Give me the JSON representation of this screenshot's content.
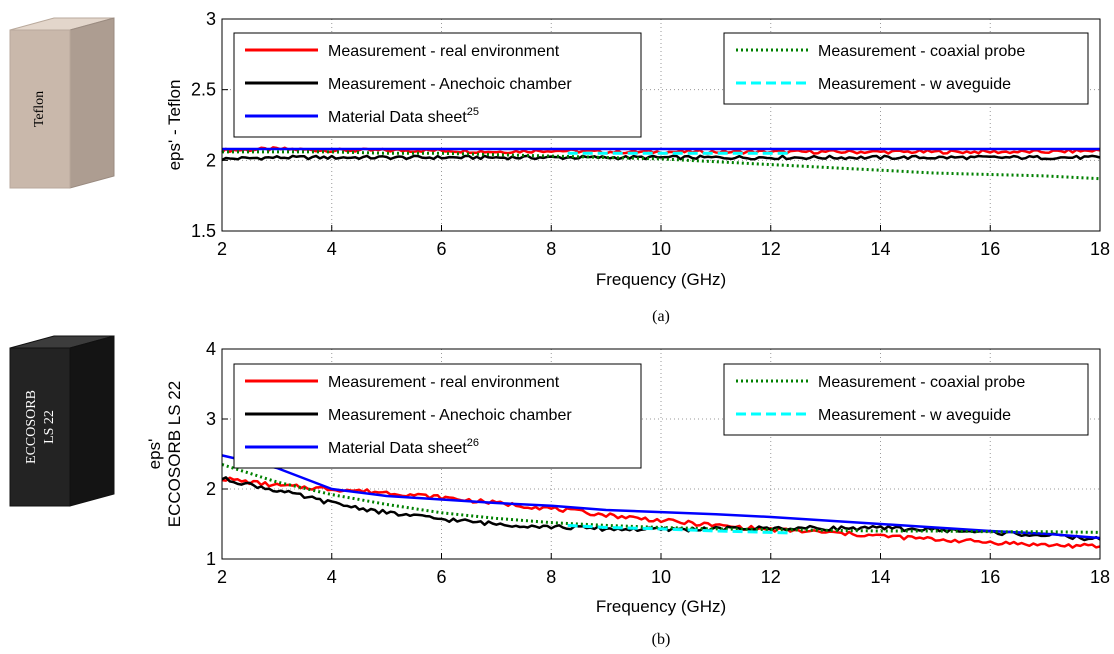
{
  "chart_data": [
    {
      "type": "line",
      "caption": "(a)",
      "material": "Teflon",
      "block_color": "#c9b8ab",
      "xlabel": "Frequency (GHz)",
      "ylabel": "eps' - Teflon",
      "xlim": [
        2,
        18
      ],
      "ylim": [
        1.5,
        3
      ],
      "xticks": [
        "2",
        "4",
        "6",
        "8",
        "10",
        "12",
        "14",
        "16",
        "18"
      ],
      "yticks": [
        "1.5",
        "2",
        "2.5",
        "3"
      ],
      "grid": true,
      "legend_placement": "top",
      "series": [
        {
          "name": "Measurement - real environment",
          "color": "#ff0000",
          "style": "solid",
          "x": [
            2,
            3,
            4,
            5,
            6,
            7,
            8,
            9,
            10,
            11,
            12,
            13,
            14,
            15,
            16,
            17,
            18
          ],
          "y": [
            2.07,
            2.08,
            2.07,
            2.07,
            2.07,
            2.06,
            2.07,
            2.06,
            2.06,
            2.06,
            2.06,
            2.06,
            2.06,
            2.06,
            2.06,
            2.06,
            2.07
          ]
        },
        {
          "name": "Measurement - Anechoic chamber",
          "color": "#000000",
          "style": "solid",
          "x": [
            2,
            3,
            4,
            5,
            6,
            7,
            8,
            9,
            10,
            11,
            12,
            13,
            14,
            15,
            16,
            17,
            18
          ],
          "y": [
            2.01,
            2.02,
            2.02,
            2.02,
            2.02,
            2.02,
            2.02,
            2.02,
            2.02,
            2.02,
            2.02,
            2.02,
            2.02,
            2.02,
            2.02,
            2.02,
            2.02
          ]
        },
        {
          "name": "Material Data sheet",
          "sup": "25",
          "color": "#0000ff",
          "style": "solid",
          "x": [
            2,
            18
          ],
          "y": [
            2.08,
            2.08
          ]
        },
        {
          "name": "Measurement - coaxial probe",
          "color": "#008000",
          "style": "dotted",
          "x": [
            2,
            3,
            4,
            5,
            6,
            7,
            8,
            9,
            10,
            11,
            12,
            13,
            14,
            15,
            16,
            17,
            18
          ],
          "y": [
            2.06,
            2.06,
            2.06,
            2.05,
            2.05,
            2.04,
            2.03,
            2.02,
            2.01,
            1.99,
            1.97,
            1.95,
            1.93,
            1.91,
            1.9,
            1.89,
            1.87
          ]
        },
        {
          "name": "Measurement - w aveguide",
          "color": "#00ffff",
          "style": "dashed",
          "x": [
            8.3,
            9,
            10,
            11,
            12,
            12.4
          ],
          "y": [
            2.05,
            2.05,
            2.05,
            2.05,
            2.05,
            2.05
          ]
        }
      ]
    },
    {
      "type": "line",
      "caption": "(b)",
      "material": "ECCOSORB LS 22",
      "material_lines": [
        "ECCOSORB",
        "LS 22"
      ],
      "block_color": "#232323",
      "xlabel": "Frequency (GHz)",
      "ylabel": "eps'",
      "ylabel2": "ECCOSORB LS 22",
      "xlim": [
        2,
        18
      ],
      "ylim": [
        1,
        4
      ],
      "xticks": [
        "2",
        "4",
        "6",
        "8",
        "10",
        "12",
        "14",
        "16",
        "18"
      ],
      "yticks": [
        "1",
        "2",
        "3",
        "4"
      ],
      "grid": true,
      "legend_placement": "top",
      "series": [
        {
          "name": "Measurement - real environment",
          "color": "#ff0000",
          "style": "solid",
          "x": [
            2,
            3,
            4,
            5,
            6,
            7,
            8,
            9,
            10,
            11,
            12,
            13,
            14,
            15,
            16,
            17,
            18
          ],
          "y": [
            2.15,
            2.05,
            2.0,
            1.95,
            1.88,
            1.8,
            1.72,
            1.63,
            1.55,
            1.48,
            1.42,
            1.38,
            1.33,
            1.28,
            1.24,
            1.2,
            1.18
          ]
        },
        {
          "name": "Measurement - Anechoic chamber",
          "color": "#000000",
          "style": "solid",
          "x": [
            2,
            3,
            4,
            5,
            6,
            7,
            8,
            9,
            10,
            11,
            12,
            13,
            14,
            15,
            16,
            17,
            18
          ],
          "y": [
            2.15,
            1.98,
            1.8,
            1.66,
            1.57,
            1.5,
            1.46,
            1.43,
            1.42,
            1.43,
            1.44,
            1.44,
            1.44,
            1.42,
            1.38,
            1.34,
            1.28
          ]
        },
        {
          "name": "Material Data sheet",
          "sup": "26",
          "color": "#0000ff",
          "style": "solid",
          "x": [
            2,
            3,
            4,
            5,
            6,
            7,
            8,
            9,
            10,
            11,
            12,
            13,
            14,
            15,
            16,
            17,
            18
          ],
          "y": [
            2.48,
            2.3,
            2.0,
            1.9,
            1.85,
            1.8,
            1.76,
            1.7,
            1.67,
            1.64,
            1.6,
            1.55,
            1.5,
            1.45,
            1.4,
            1.36,
            1.3
          ]
        },
        {
          "name": "Measurement - coaxial probe",
          "color": "#008000",
          "style": "dotted",
          "x": [
            2,
            3,
            4,
            5,
            6,
            7,
            8,
            9,
            10,
            11,
            12,
            13,
            14,
            15,
            16,
            17,
            18
          ],
          "y": [
            2.35,
            2.1,
            1.92,
            1.78,
            1.66,
            1.58,
            1.52,
            1.48,
            1.45,
            1.43,
            1.42,
            1.41,
            1.4,
            1.4,
            1.39,
            1.39,
            1.38
          ]
        },
        {
          "name": "Measurement - w aveguide",
          "color": "#00ffff",
          "style": "dashed",
          "x": [
            8.3,
            9,
            10,
            11,
            12,
            12.4
          ],
          "y": [
            1.48,
            1.45,
            1.43,
            1.4,
            1.38,
            1.37
          ]
        }
      ]
    }
  ]
}
